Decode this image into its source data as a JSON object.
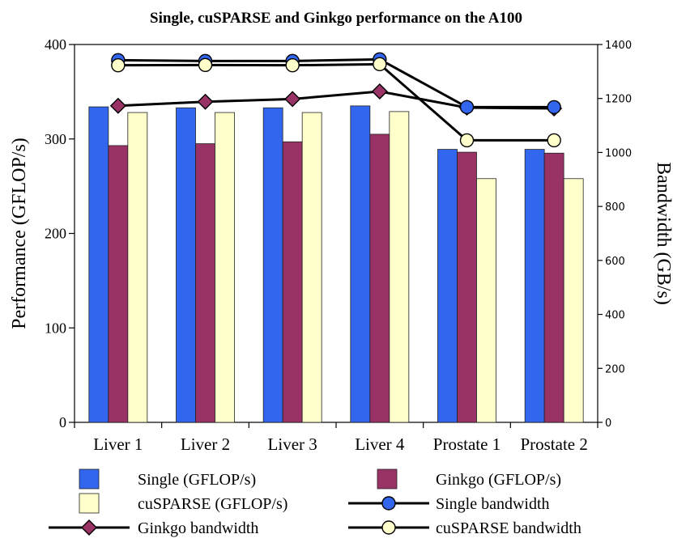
{
  "chart_data": {
    "type": "bar",
    "title": "Single, cuSPARSE and Ginkgo performance on the A100",
    "ylabel": "Performance (GFLOP/s)",
    "y2label": "Bandwidth (GB/s)",
    "ylim": [
      0,
      400
    ],
    "y2lim": [
      0,
      1400
    ],
    "yticks": [
      "0",
      "100",
      "200",
      "300",
      "400"
    ],
    "y2ticks": [
      "0",
      "200",
      "400",
      "600",
      "800",
      "1000",
      "1200",
      "1400"
    ],
    "categories": [
      "Liver 1",
      "Liver 2",
      "Liver 3",
      "Liver 4",
      "Prostate 1",
      "Prostate 2"
    ],
    "series": [
      {
        "name": "Single (GFLOP/s)",
        "kind": "bar",
        "color": "#3366ee",
        "values": [
          334,
          333,
          333,
          335,
          289,
          289
        ]
      },
      {
        "name": "Ginkgo (GFLOP/s)",
        "kind": "bar",
        "color": "#993366",
        "values": [
          293,
          295,
          297,
          305,
          286,
          285
        ]
      },
      {
        "name": "cuSPARSE (GFLOP/s)",
        "kind": "bar",
        "color": "#ffffcc",
        "values": [
          328,
          328,
          328,
          329,
          258,
          258
        ]
      },
      {
        "name": "Single bandwidth",
        "kind": "line",
        "marker": "circle",
        "color": "#3366ee",
        "values": [
          1342,
          1339,
          1339,
          1345,
          1168,
          1168
        ]
      },
      {
        "name": "Ginkgo bandwidth",
        "kind": "line",
        "marker": "diamond",
        "color": "#993366",
        "values": [
          1173,
          1188,
          1198,
          1226,
          1166,
          1163
        ]
      },
      {
        "name": "cuSPARSE bandwidth",
        "kind": "line",
        "marker": "circle",
        "color": "#ffffcc",
        "values": [
          1323,
          1324,
          1323,
          1327,
          1045,
          1045
        ]
      }
    ],
    "legend": "bottom"
  }
}
